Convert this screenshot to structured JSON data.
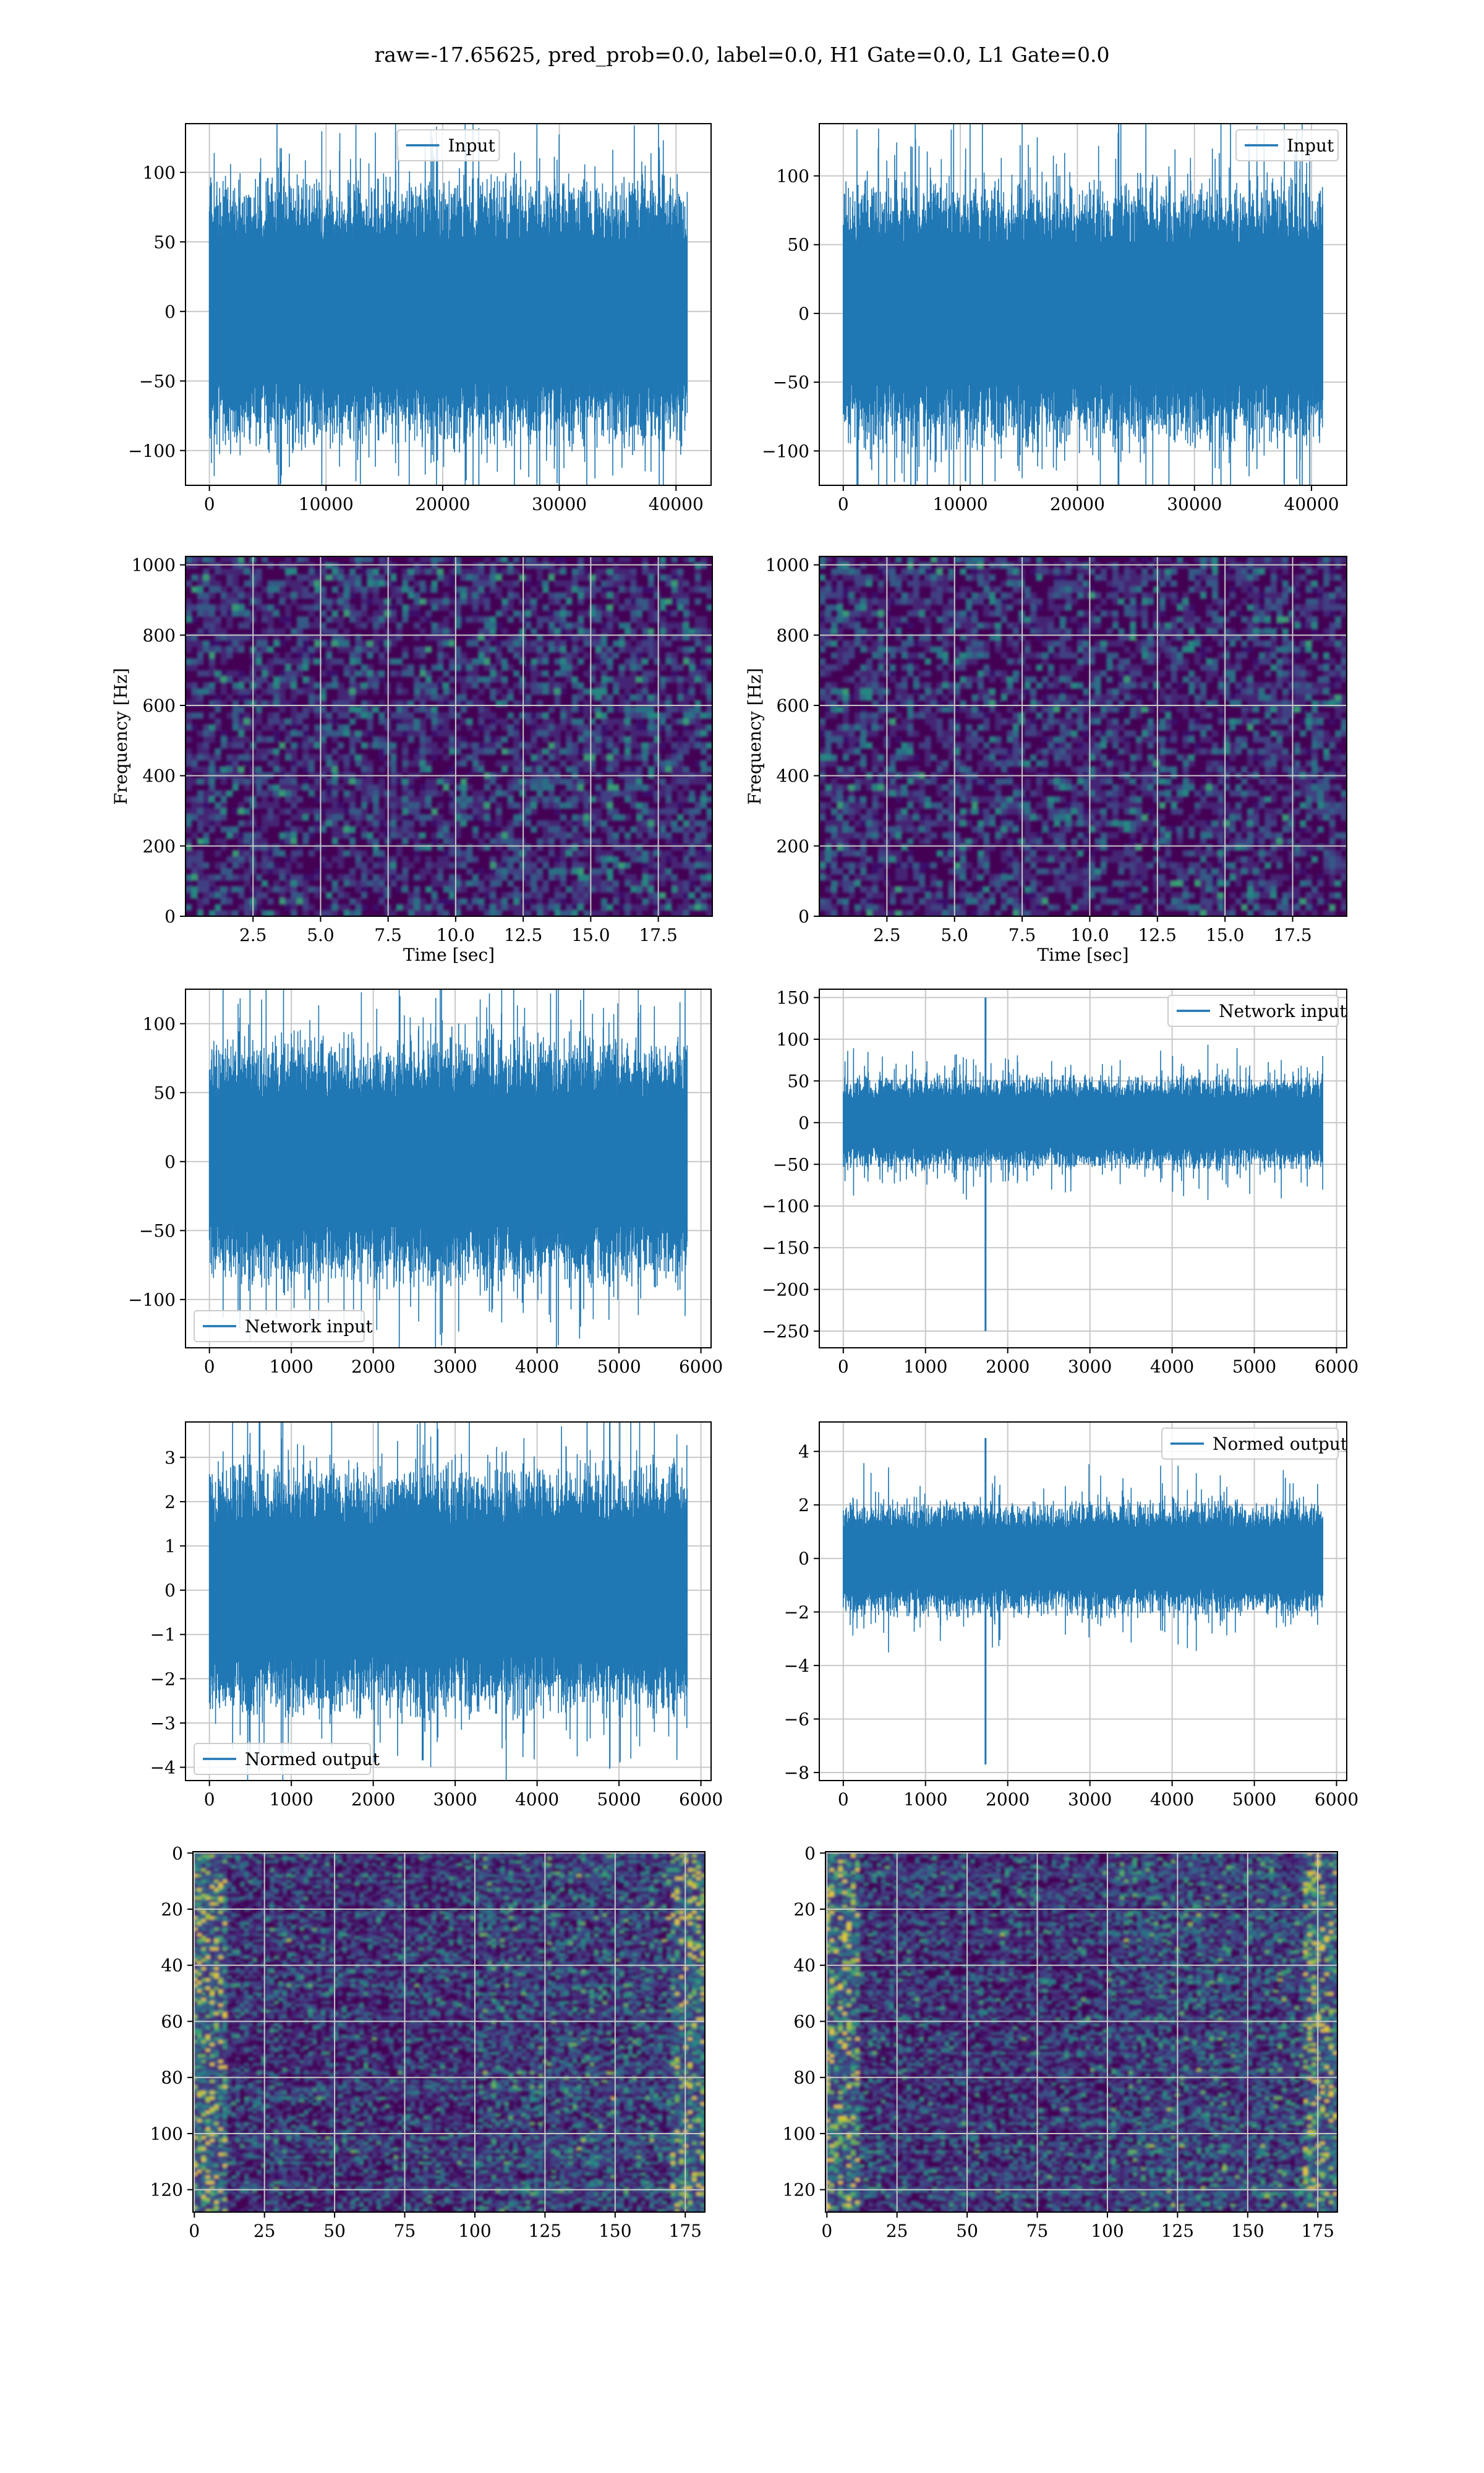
{
  "title": "raw=-17.65625, pred_prob=0.0, label=0.0, H1 Gate=0.0, L1 Gate=0.0",
  "colors": {
    "line": "#1f77b4",
    "grid": "#c8c8c8",
    "viridis_low": "#440154",
    "viridis_high": "#fde725"
  },
  "chart_data": [
    {
      "id": "p0",
      "type": "line",
      "series": [
        {
          "name": "Input",
          "kind": "noise",
          "amplitude": 55,
          "n": 40960
        }
      ],
      "xlim": [
        -2048,
        43008
      ],
      "ylim": [
        -125,
        135
      ],
      "xticks": [
        0,
        10000,
        20000,
        30000,
        40000
      ],
      "yticks": [
        -100,
        -50,
        0,
        50,
        100
      ],
      "xlabel": "",
      "ylabel": "",
      "legend": "upper center",
      "grid": true
    },
    {
      "id": "p1",
      "type": "line",
      "series": [
        {
          "name": "Input",
          "kind": "noise",
          "amplitude": 55,
          "n": 40960
        }
      ],
      "xlim": [
        -2048,
        43008
      ],
      "ylim": [
        -125,
        138
      ],
      "xticks": [
        0,
        10000,
        20000,
        30000,
        40000
      ],
      "yticks": [
        -100,
        -50,
        0,
        50,
        100
      ],
      "xlabel": "",
      "ylabel": "",
      "legend": "upper right",
      "grid": true
    },
    {
      "id": "p2",
      "type": "heatmap",
      "colormap": "viridis",
      "xlim": [
        0,
        19.5
      ],
      "ylim": [
        0,
        1024
      ],
      "xticks": [
        2.5,
        5.0,
        7.5,
        10.0,
        12.5,
        15.0,
        17.5
      ],
      "yticks": [
        0,
        200,
        400,
        600,
        800,
        1000
      ],
      "xlabel": "Time [sec]",
      "ylabel": "Frequency [Hz]",
      "grid": true
    },
    {
      "id": "p3",
      "type": "heatmap",
      "colormap": "viridis",
      "xlim": [
        0,
        19.5
      ],
      "ylim": [
        0,
        1024
      ],
      "xticks": [
        2.5,
        5.0,
        7.5,
        10.0,
        12.5,
        15.0,
        17.5
      ],
      "yticks": [
        0,
        200,
        400,
        600,
        800,
        1000
      ],
      "xlabel": "Time [sec]",
      "ylabel": "Frequency [Hz]",
      "grid": true
    },
    {
      "id": "p4",
      "type": "line",
      "series": [
        {
          "name": "Network input",
          "kind": "noise",
          "amplitude": 50,
          "n": 5832
        }
      ],
      "xlim": [
        -292,
        6124
      ],
      "ylim": [
        -135,
        125
      ],
      "xticks": [
        0,
        1000,
        2000,
        3000,
        4000,
        5000,
        6000
      ],
      "yticks": [
        -100,
        -50,
        0,
        50,
        100
      ],
      "xlabel": "",
      "ylabel": "",
      "legend": "lower left",
      "grid": true
    },
    {
      "id": "p5",
      "type": "line",
      "series": [
        {
          "name": "Network input",
          "kind": "noise",
          "amplitude": 32,
          "n": 5832,
          "spike_x": 1730,
          "spike_min": -250,
          "spike_max": 150
        }
      ],
      "xlim": [
        -292,
        6124
      ],
      "ylim": [
        -270,
        160
      ],
      "xticks": [
        0,
        1000,
        2000,
        3000,
        4000,
        5000,
        6000
      ],
      "yticks": [
        -250,
        -200,
        -150,
        -100,
        -50,
        0,
        50,
        100,
        150
      ],
      "xlabel": "",
      "ylabel": "",
      "legend": "upper right",
      "grid": true
    },
    {
      "id": "p6",
      "type": "line",
      "series": [
        {
          "name": "Normed output",
          "kind": "noise",
          "amplitude": 1.6,
          "n": 5832
        }
      ],
      "xlim": [
        -292,
        6124
      ],
      "ylim": [
        -4.3,
        3.8
      ],
      "xticks": [
        0,
        1000,
        2000,
        3000,
        4000,
        5000,
        6000
      ],
      "yticks": [
        -4,
        -3,
        -2,
        -1,
        0,
        1,
        2,
        3
      ],
      "xlabel": "",
      "ylabel": "",
      "legend": "lower left",
      "grid": true
    },
    {
      "id": "p7",
      "type": "line",
      "series": [
        {
          "name": "Normed output",
          "kind": "noise",
          "amplitude": 1.2,
          "n": 5832,
          "spike_x": 1730,
          "spike_min": -7.7,
          "spike_max": 4.5
        }
      ],
      "xlim": [
        -292,
        6124
      ],
      "ylim": [
        -8.3,
        5.1
      ],
      "xticks": [
        0,
        1000,
        2000,
        3000,
        4000,
        5000,
        6000
      ],
      "yticks": [
        -8,
        -6,
        -4,
        -2,
        0,
        2,
        4
      ],
      "xlabel": "",
      "ylabel": "",
      "legend": "upper right",
      "grid": true
    },
    {
      "id": "p8",
      "type": "heatmap",
      "colormap": "viridis",
      "orientation": "image",
      "xlim": [
        -0.5,
        182
      ],
      "ylim": [
        128,
        -0.5
      ],
      "xticks": [
        0,
        25,
        50,
        75,
        100,
        125,
        150,
        175
      ],
      "yticks": [
        0,
        20,
        40,
        60,
        80,
        100,
        120
      ],
      "xlabel": "",
      "ylabel": "",
      "grid": true
    },
    {
      "id": "p9",
      "type": "heatmap",
      "colormap": "viridis",
      "orientation": "image",
      "xlim": [
        -0.5,
        182
      ],
      "ylim": [
        128,
        -0.5
      ],
      "xticks": [
        0,
        25,
        50,
        75,
        100,
        125,
        150,
        175
      ],
      "yticks": [
        0,
        20,
        40,
        60,
        80,
        100,
        120
      ],
      "xlabel": "",
      "ylabel": "",
      "grid": true
    }
  ]
}
